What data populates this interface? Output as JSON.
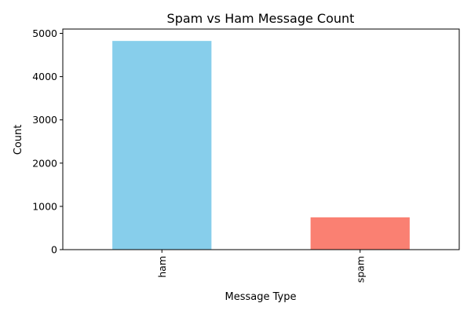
{
  "chart_data": {
    "type": "bar",
    "title": "Spam vs Ham Message Count",
    "xlabel": "Message Type",
    "ylabel": "Count",
    "categories": [
      "ham",
      "spam"
    ],
    "values": [
      4825,
      747
    ],
    "colors": [
      "#87ceeb",
      "#fa8072"
    ],
    "ylim": [
      0,
      5100
    ],
    "yticks": [
      0,
      1000,
      2000,
      3000,
      4000,
      5000
    ],
    "xtick_rotation": 90,
    "grid": false,
    "legend": "none"
  }
}
